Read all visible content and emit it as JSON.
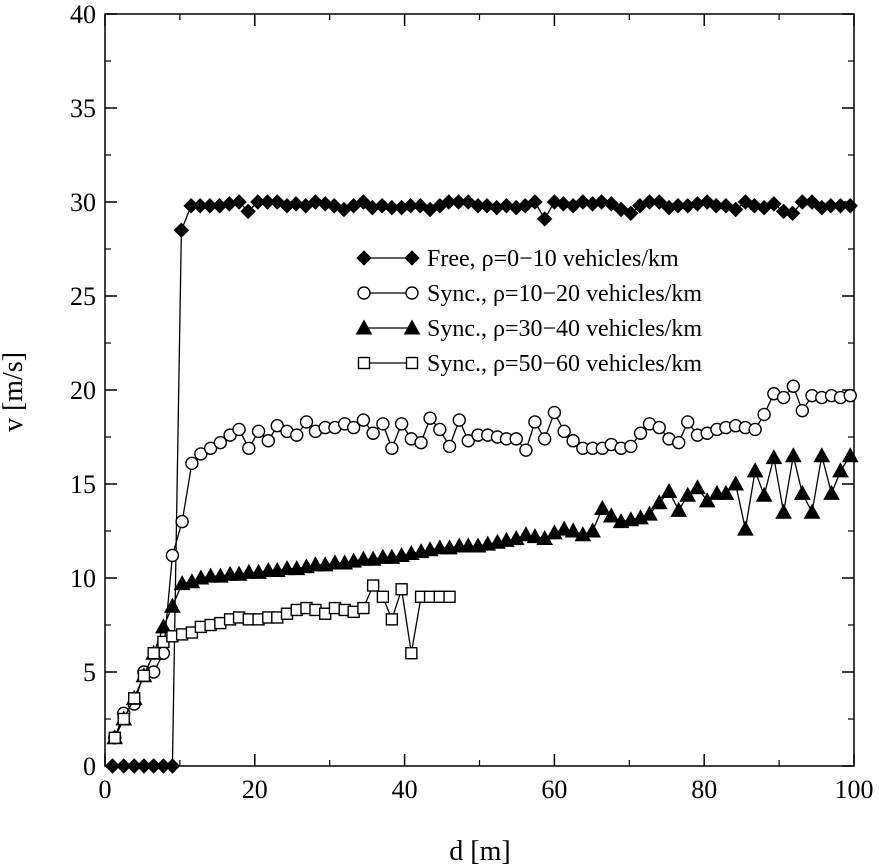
{
  "chart_data": {
    "type": "line",
    "title": "",
    "xlabel": "d [m]",
    "ylabel": "v [m/s]",
    "xlim": [
      0,
      100
    ],
    "ylim": [
      0,
      40
    ],
    "xticks": [
      0,
      20,
      40,
      60,
      80,
      100
    ],
    "yticks": [
      0,
      5,
      10,
      15,
      20,
      25,
      30,
      35,
      40
    ],
    "grid": false,
    "legend_position": "center-right",
    "series": [
      {
        "name": "Free, ρ=0−10 vehicles/km",
        "marker": "diamond-filled",
        "x": [
          1.0,
          2.5,
          3.9,
          5.2,
          6.5,
          7.8,
          9.0,
          10.2,
          11.5,
          12.7,
          14.0,
          15.3,
          16.6,
          17.9,
          19.1,
          20.4,
          21.7,
          23.0,
          24.3,
          25.5,
          26.8,
          28.1,
          29.4,
          30.6,
          31.9,
          33.2,
          34.5,
          35.7,
          37.0,
          38.3,
          39.6,
          40.8,
          42.1,
          43.4,
          44.7,
          45.9,
          47.2,
          48.5,
          49.8,
          51.0,
          52.3,
          53.6,
          54.9,
          56.1,
          57.4,
          58.7,
          60.0,
          61.2,
          62.5,
          63.8,
          65.1,
          66.3,
          67.6,
          68.9,
          70.2,
          71.4,
          72.7,
          74.0,
          75.3,
          76.5,
          77.8,
          79.1,
          80.4,
          81.6,
          82.9,
          84.2,
          85.5,
          86.7,
          88.0,
          89.3,
          90.6,
          91.8,
          93.1,
          94.4,
          95.7,
          96.9,
          98.2,
          99.5
        ],
        "y": [
          0,
          0,
          0,
          0,
          0,
          0,
          0,
          28.5,
          29.8,
          29.8,
          29.8,
          29.8,
          29.9,
          30.0,
          29.5,
          30.0,
          30.0,
          30.0,
          29.8,
          29.9,
          29.8,
          30.0,
          29.9,
          29.8,
          29.6,
          29.8,
          30.0,
          29.7,
          29.8,
          29.7,
          29.7,
          29.8,
          29.8,
          29.6,
          29.8,
          30.0,
          30.0,
          30.0,
          29.8,
          29.8,
          29.7,
          29.8,
          29.7,
          29.8,
          30.0,
          29.1,
          30.0,
          29.9,
          29.8,
          30.0,
          29.9,
          30.0,
          29.9,
          29.6,
          29.4,
          29.8,
          30.0,
          30.0,
          29.7,
          29.8,
          29.8,
          29.9,
          30.0,
          29.8,
          29.8,
          29.6,
          30.0,
          29.8,
          29.7,
          29.9,
          29.5,
          29.4,
          30.0,
          30.0,
          29.7,
          29.8,
          29.8,
          29.8
        ]
      },
      {
        "name": "Sync., ρ=10−20 vehicles/km",
        "marker": "circle-open",
        "x": [
          1.3,
          2.5,
          3.9,
          5.2,
          6.5,
          7.8,
          9.0,
          10.3,
          11.6,
          12.8,
          14.1,
          15.4,
          16.7,
          17.9,
          19.2,
          20.5,
          21.8,
          23.0,
          24.3,
          25.6,
          26.9,
          28.1,
          29.4,
          30.7,
          32.0,
          33.2,
          34.5,
          35.8,
          37.1,
          38.3,
          39.6,
          40.9,
          42.2,
          43.4,
          44.7,
          46.0,
          47.3,
          48.5,
          49.8,
          51.1,
          52.4,
          53.6,
          54.9,
          56.2,
          57.4,
          58.7,
          60.0,
          61.3,
          62.5,
          63.8,
          65.1,
          66.4,
          67.6,
          68.9,
          70.2,
          71.5,
          72.7,
          74.0,
          75.3,
          76.6,
          77.8,
          79.1,
          80.4,
          81.7,
          82.9,
          84.2,
          85.5,
          86.8,
          88.0,
          89.3,
          90.6,
          91.9,
          93.1,
          94.4,
          95.7,
          97.0,
          98.2,
          99.5
        ],
        "y": [
          1.5,
          2.8,
          3.3,
          5.0,
          5.0,
          6.0,
          11.2,
          13.0,
          16.1,
          16.6,
          16.9,
          17.2,
          17.6,
          17.9,
          16.9,
          17.8,
          17.3,
          18.1,
          17.8,
          17.6,
          18.3,
          17.8,
          18.0,
          18.0,
          18.2,
          18.0,
          18.4,
          17.7,
          18.2,
          16.9,
          18.2,
          17.4,
          17.2,
          18.5,
          17.9,
          17.0,
          18.4,
          17.3,
          17.6,
          17.6,
          17.5,
          17.4,
          17.4,
          16.8,
          18.3,
          17.4,
          18.8,
          17.8,
          17.3,
          16.9,
          16.9,
          16.9,
          17.1,
          16.9,
          17.0,
          17.7,
          18.2,
          18.0,
          17.4,
          17.2,
          18.3,
          17.6,
          17.7,
          17.9,
          18.0,
          18.1,
          18.0,
          17.9,
          18.7,
          19.8,
          19.6,
          20.2,
          18.9,
          19.7,
          19.6,
          19.7,
          19.6,
          19.7
        ]
      },
      {
        "name": "Sync., ρ=30−40 vehicles/km",
        "marker": "triangle-filled",
        "x": [
          1.3,
          2.5,
          3.9,
          5.2,
          6.5,
          7.8,
          9.0,
          10.3,
          11.6,
          12.8,
          14.1,
          15.4,
          16.7,
          17.9,
          19.2,
          20.5,
          21.8,
          23.0,
          24.3,
          25.6,
          26.9,
          28.1,
          29.4,
          30.7,
          32.0,
          33.2,
          34.5,
          35.8,
          37.1,
          38.3,
          39.6,
          40.9,
          42.2,
          43.4,
          44.7,
          46.0,
          47.3,
          48.5,
          49.8,
          51.1,
          52.4,
          53.6,
          54.9,
          56.2,
          57.4,
          58.7,
          60.0,
          61.3,
          62.5,
          63.8,
          65.1,
          66.4,
          67.6,
          68.9,
          70.2,
          71.5,
          72.7,
          74.0,
          75.3,
          76.6,
          77.8,
          79.1,
          80.4,
          81.7,
          82.9,
          84.2,
          85.5,
          86.8,
          88.0,
          89.3,
          90.6,
          91.9,
          93.1,
          94.4,
          95.7,
          97.0,
          98.2,
          99.5
        ],
        "y": [
          1.5,
          2.5,
          3.6,
          4.8,
          6.0,
          7.4,
          8.5,
          9.7,
          9.8,
          10.0,
          10.1,
          10.1,
          10.2,
          10.2,
          10.3,
          10.3,
          10.4,
          10.4,
          10.5,
          10.5,
          10.6,
          10.7,
          10.7,
          10.8,
          10.8,
          10.9,
          11.0,
          11.0,
          11.1,
          11.1,
          11.2,
          11.3,
          11.4,
          11.5,
          11.6,
          11.6,
          11.7,
          11.7,
          11.7,
          11.8,
          11.9,
          12.0,
          12.1,
          12.3,
          12.2,
          12.1,
          12.4,
          12.6,
          12.5,
          12.3,
          12.5,
          13.7,
          13.3,
          13.0,
          13.1,
          13.2,
          13.4,
          14.0,
          14.6,
          13.6,
          14.4,
          14.8,
          14.1,
          14.5,
          14.5,
          15.0,
          12.6,
          15.7,
          14.4,
          16.4,
          13.5,
          16.5,
          14.5,
          13.5,
          16.5,
          14.5,
          15.7,
          16.5
        ]
      },
      {
        "name": "Sync., ρ=50−60 vehicles/km",
        "marker": "square-open",
        "x": [
          1.3,
          2.5,
          3.9,
          5.2,
          6.5,
          7.8,
          9.0,
          10.3,
          11.6,
          12.8,
          14.1,
          15.4,
          16.7,
          17.9,
          19.2,
          20.5,
          21.8,
          23.0,
          24.3,
          25.6,
          26.9,
          28.1,
          29.4,
          30.7,
          32.0,
          33.2,
          34.5,
          35.8,
          37.1,
          38.3,
          39.6,
          40.9,
          42.2,
          43.4,
          44.7,
          46.0
        ],
        "y": [
          1.5,
          2.5,
          3.6,
          4.8,
          6.0,
          6.6,
          6.9,
          7.0,
          7.1,
          7.4,
          7.5,
          7.6,
          7.8,
          7.9,
          7.8,
          7.8,
          7.9,
          7.9,
          8.1,
          8.3,
          8.4,
          8.3,
          8.1,
          8.4,
          8.3,
          8.2,
          8.4,
          9.6,
          9.0,
          7.8,
          9.4,
          6.0,
          9.0,
          9.0,
          9.0,
          9.0
        ]
      }
    ]
  }
}
